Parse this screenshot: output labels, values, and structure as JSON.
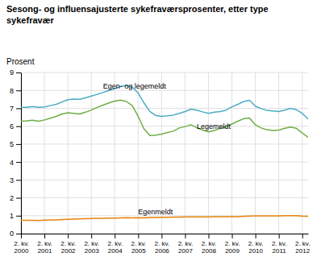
{
  "chart_data": {
    "type": "line",
    "title": "Sesong- og influensajusterte sykefraværsprosenter, etter type\nsykefravær",
    "ylabel": "Prosent",
    "categories": [
      "2. kv.\n2000",
      null,
      null,
      null,
      "2. kv.\n2001",
      null,
      null,
      null,
      "2. kv.\n2002",
      null,
      null,
      null,
      "2. kv.\n2003",
      null,
      null,
      null,
      "2. kv.\n2004",
      null,
      null,
      null,
      "2. kv.\n2005",
      null,
      null,
      null,
      "2. kv.\n2006",
      null,
      null,
      null,
      "2. kv.\n2007",
      null,
      null,
      null,
      "2. kv.\n2008",
      null,
      null,
      null,
      "2. kv.\n2009",
      null,
      null,
      null,
      "2. kv.\n2010",
      null,
      null,
      null,
      "2. kv.\n2011",
      null,
      null,
      null,
      "2. kv.\n2012",
      null
    ],
    "series": [
      {
        "color": "#4bacc6",
        "values": [
          7.05,
          7.05,
          7.1,
          7.05,
          7.08,
          7.15,
          7.22,
          7.35,
          7.48,
          7.52,
          7.5,
          7.58,
          7.68,
          7.78,
          7.88,
          8.0,
          8.1,
          8.22,
          8.28,
          8.18,
          7.85,
          7.3,
          6.82,
          6.6,
          6.55,
          6.58,
          6.62,
          6.72,
          6.82,
          6.95,
          6.9,
          6.8,
          6.72,
          6.78,
          6.82,
          6.9,
          7.08,
          7.22,
          7.38,
          7.45,
          7.12,
          6.98,
          6.88,
          6.85,
          6.82,
          6.9,
          7.0,
          6.92,
          6.72,
          6.4
        ]
      },
      {
        "color": "#70ad47",
        "values": [
          6.28,
          6.3,
          6.33,
          6.28,
          6.35,
          6.45,
          6.55,
          6.68,
          6.75,
          6.72,
          6.68,
          6.78,
          6.9,
          7.05,
          7.18,
          7.3,
          7.4,
          7.46,
          7.38,
          7.15,
          6.55,
          5.85,
          5.48,
          5.5,
          5.56,
          5.65,
          5.72,
          5.9,
          5.98,
          6.08,
          5.92,
          5.78,
          5.68,
          5.76,
          5.88,
          5.96,
          6.12,
          6.28,
          6.42,
          6.46,
          6.08,
          5.9,
          5.8,
          5.76,
          5.78,
          5.88,
          5.95,
          5.88,
          5.62,
          5.38
        ]
      },
      {
        "color": "#e8820a",
        "values": [
          0.74,
          0.74,
          0.74,
          0.73,
          0.75,
          0.76,
          0.77,
          0.79,
          0.8,
          0.81,
          0.82,
          0.83,
          0.84,
          0.85,
          0.86,
          0.87,
          0.87,
          0.88,
          0.89,
          0.88,
          0.89,
          0.88,
          0.9,
          0.9,
          0.91,
          0.91,
          0.92,
          0.92,
          0.93,
          0.93,
          0.93,
          0.93,
          0.93,
          0.94,
          0.94,
          0.94,
          0.95,
          0.95,
          0.97,
          0.98,
          0.99,
          0.99,
          0.99,
          0.99,
          0.99,
          1.0,
          1.0,
          1.0,
          0.98,
          0.97
        ]
      }
    ],
    "ylim": [
      0,
      9
    ],
    "yticks": [
      0,
      1,
      2,
      3,
      4,
      5,
      6,
      7,
      8,
      9
    ],
    "grid": true,
    "annotations": [
      {
        "text": "Egen- og legemeldt",
        "x": 14,
        "y": 8.22
      },
      {
        "text": "Legemeldt",
        "x": 30,
        "y": 5.95
      },
      {
        "text": "Egenmeldt",
        "x": 20,
        "y": 1.18
      }
    ]
  }
}
